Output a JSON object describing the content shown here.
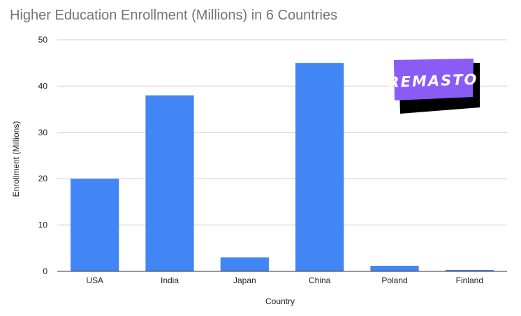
{
  "chart_data": {
    "type": "bar",
    "title": "Higher Education Enrollment (Millions) in 6 Countries",
    "xlabel": "Country",
    "ylabel": "Enrollment (Millions)",
    "categories": [
      "USA",
      "India",
      "Japan",
      "China",
      "Poland",
      "Finland"
    ],
    "values": [
      20,
      38,
      3,
      45,
      1.2,
      0.3
    ],
    "ylim": [
      0,
      50
    ],
    "yticks": [
      0,
      10,
      20,
      30,
      40,
      50
    ],
    "grid": true,
    "legend": "none",
    "bar_color": "#4285f4"
  },
  "logo": {
    "text": "REMASTO",
    "background_color": "#8a5cf6",
    "shadow_color": "#000000"
  }
}
